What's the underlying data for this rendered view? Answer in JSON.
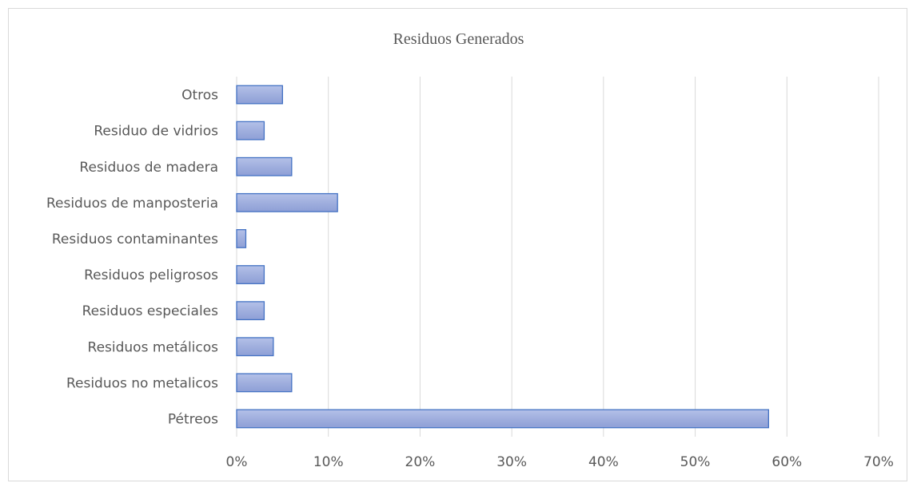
{
  "chart_data": {
    "type": "bar",
    "orientation": "horizontal",
    "title": "Residuos Generados",
    "categories": [
      "Pétreos",
      "Residuos no metalicos",
      "Residuos metálicos",
      "Residuos especiales",
      "Residuos peligrosos",
      "Residuos contaminantes",
      "Residuos de manposteria",
      "Residuos de madera",
      "Residuo de vidrios",
      "Otros"
    ],
    "values": [
      0.58,
      0.06,
      0.04,
      0.03,
      0.03,
      0.01,
      0.11,
      0.06,
      0.03,
      0.05
    ],
    "xlim": [
      0,
      0.7
    ],
    "x_ticks": [
      0,
      0.1,
      0.2,
      0.3,
      0.4,
      0.5,
      0.6,
      0.7
    ],
    "x_tick_labels": [
      "0%",
      "10%",
      "20%",
      "30%",
      "40%",
      "50%",
      "60%",
      "70%"
    ],
    "xlabel": "",
    "ylabel": "",
    "grid": "vertical",
    "legend": "none",
    "colors": {
      "bar_fill": "#a3b2e0",
      "bar_stroke": "#4472c4",
      "grid": "#d9d9d9",
      "text": "#595959"
    }
  }
}
